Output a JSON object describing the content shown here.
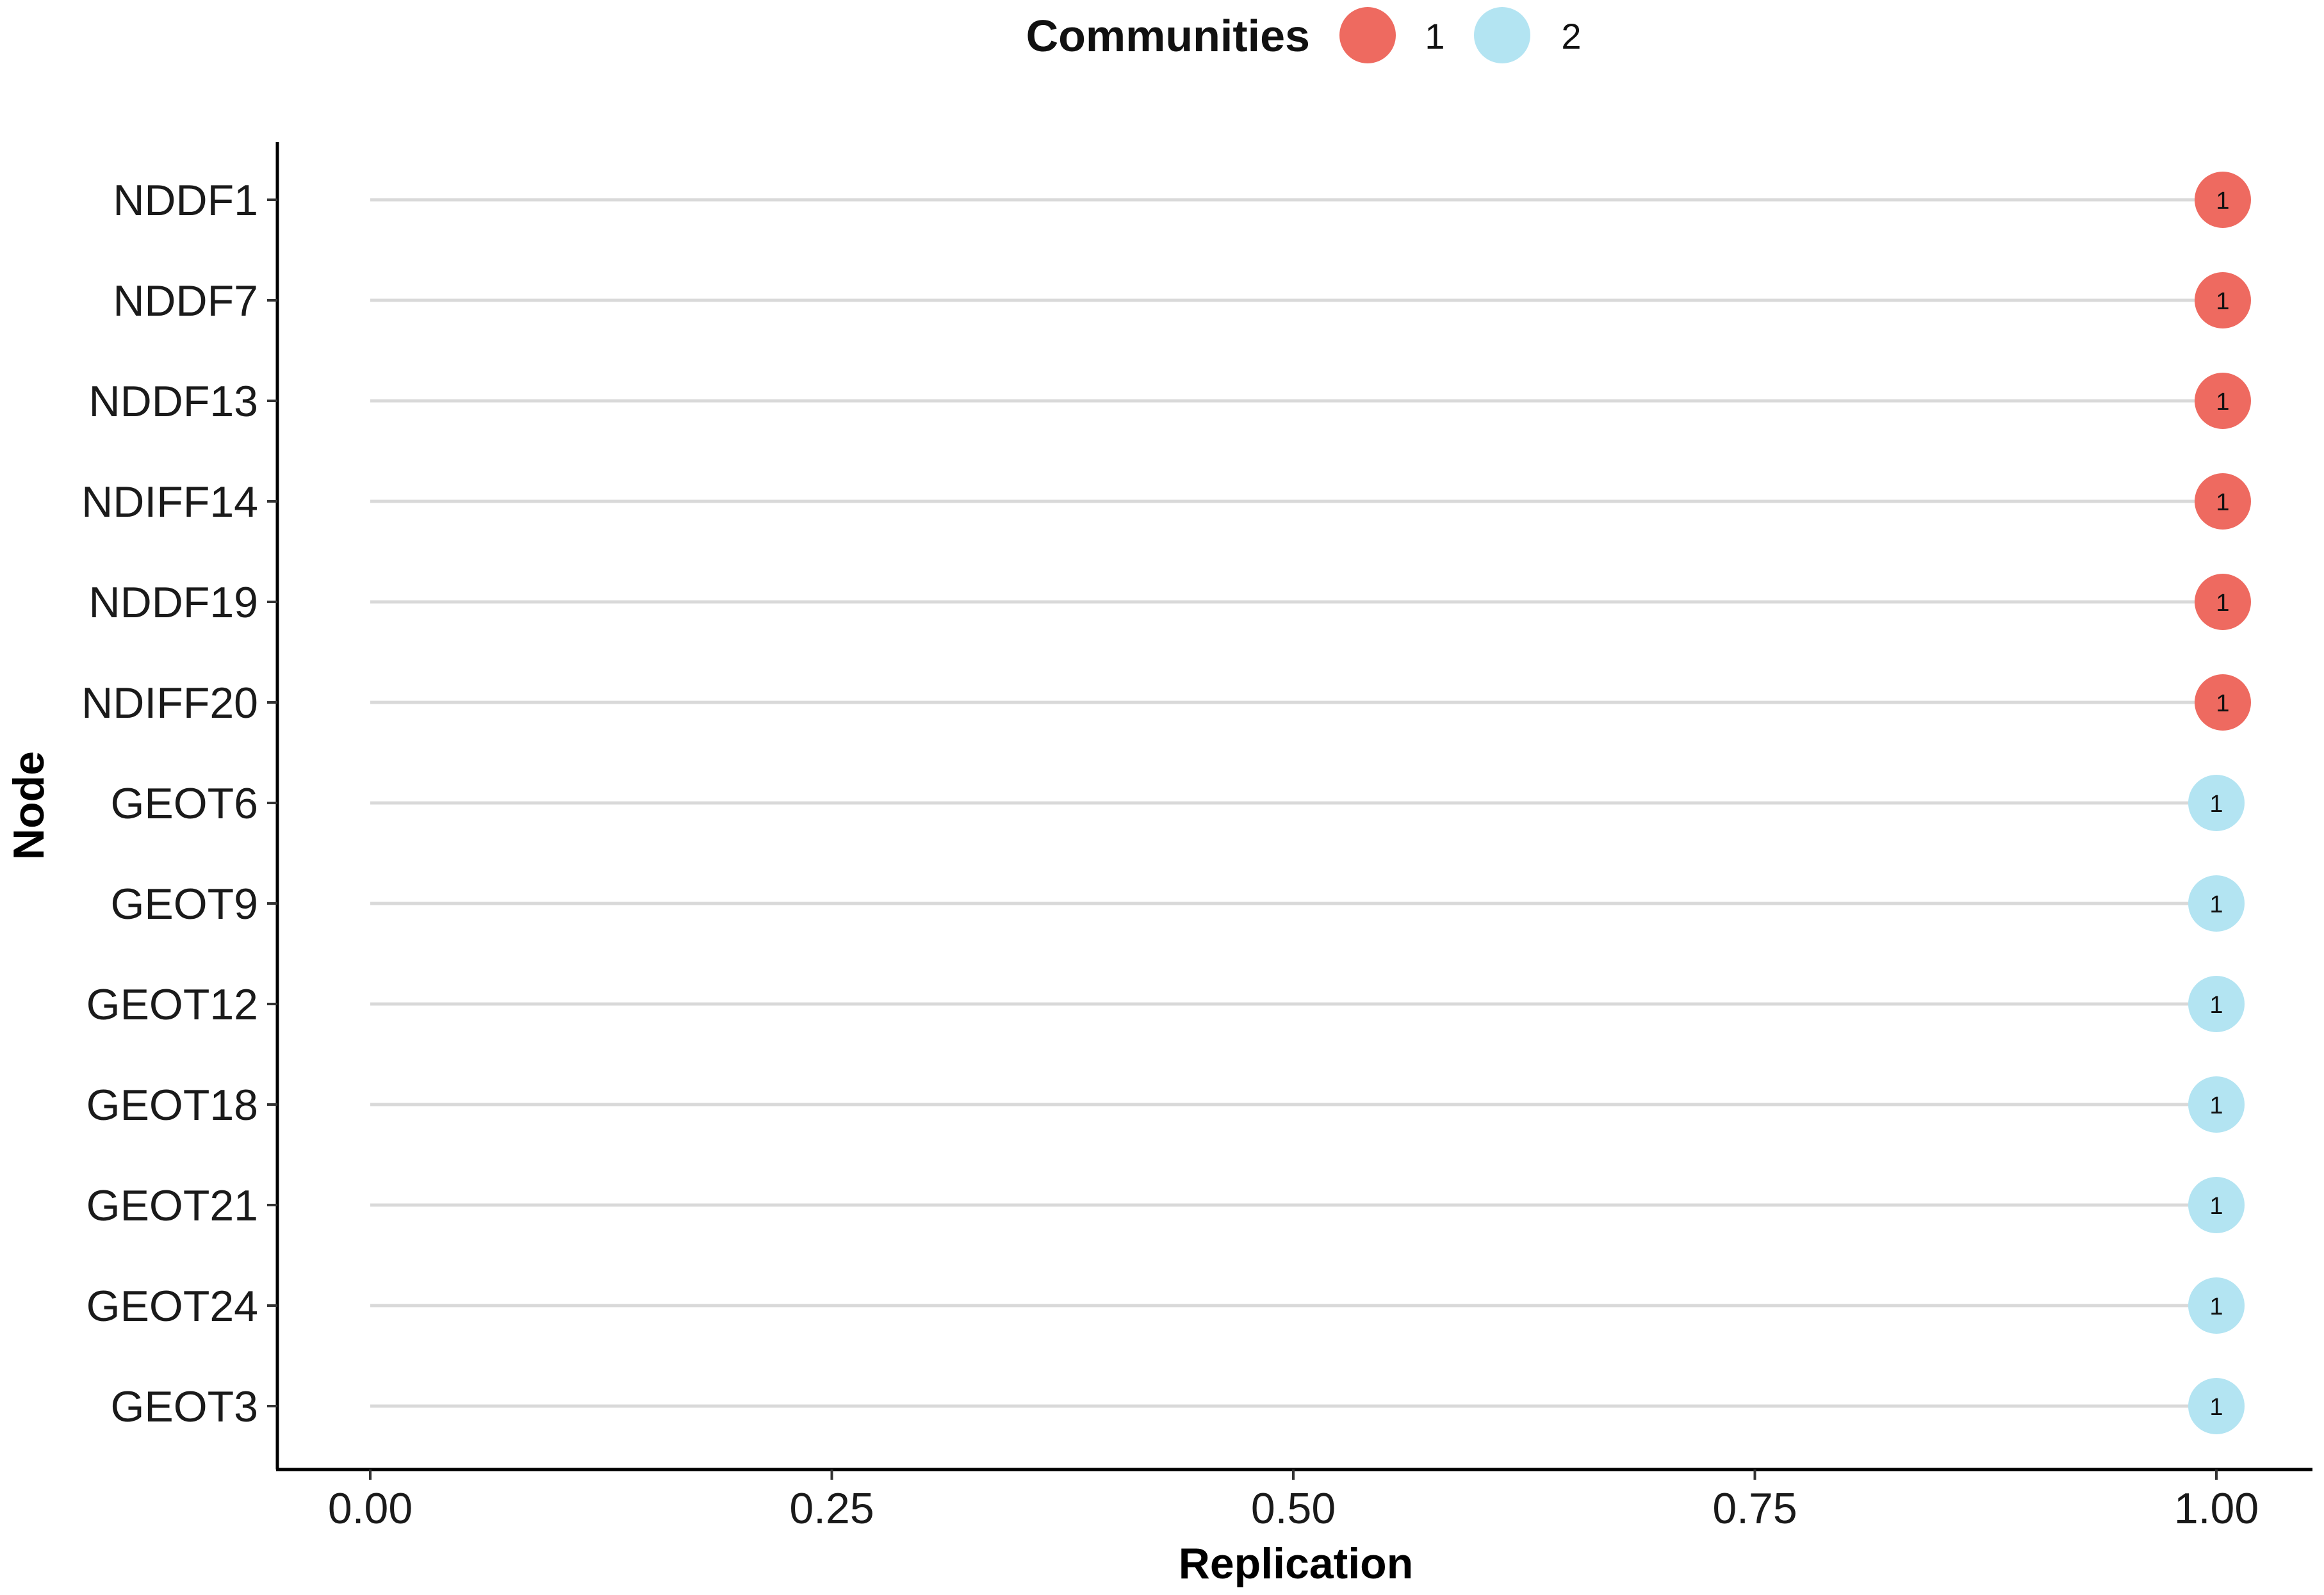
{
  "chart_data": {
    "type": "lollipop",
    "xlabel": "Replication",
    "ylabel": "Node",
    "xlim": [
      0,
      1
    ],
    "x_ticks": [
      "0.00",
      "0.25",
      "0.50",
      "0.75",
      "1.00"
    ],
    "x_tick_values": [
      0,
      0.25,
      0.5,
      0.75,
      1
    ],
    "legend": {
      "title": "Communities",
      "placement": "top",
      "entries": [
        {
          "label": "1",
          "color": "#EE6A60"
        },
        {
          "label": "2",
          "color": "#B3E4F2"
        }
      ]
    },
    "categories": [
      "NDDF1",
      "NDDF7",
      "NDDF13",
      "NDIFF14",
      "NDDF19",
      "NDIFF20",
      "GEOT6",
      "GEOT9",
      "GEOT12",
      "GEOT18",
      "GEOT21",
      "GEOT24",
      "GEOT3"
    ],
    "values": [
      1,
      1,
      1,
      1,
      1,
      1,
      1,
      1,
      1,
      1,
      1,
      1,
      1
    ],
    "community": [
      "1",
      "1",
      "1",
      "1",
      "1",
      "1",
      "2",
      "2",
      "2",
      "2",
      "2",
      "2",
      "2"
    ],
    "point_labels": [
      "1",
      "1",
      "1",
      "1",
      "1",
      "1",
      "1",
      "1",
      "1",
      "1",
      "1",
      "1",
      "1"
    ],
    "grid": false,
    "colors": {
      "community_1": "#EE6A60",
      "community_2": "#B3E4F2",
      "stem": "#d9d9d9",
      "axis": "#000000"
    }
  }
}
